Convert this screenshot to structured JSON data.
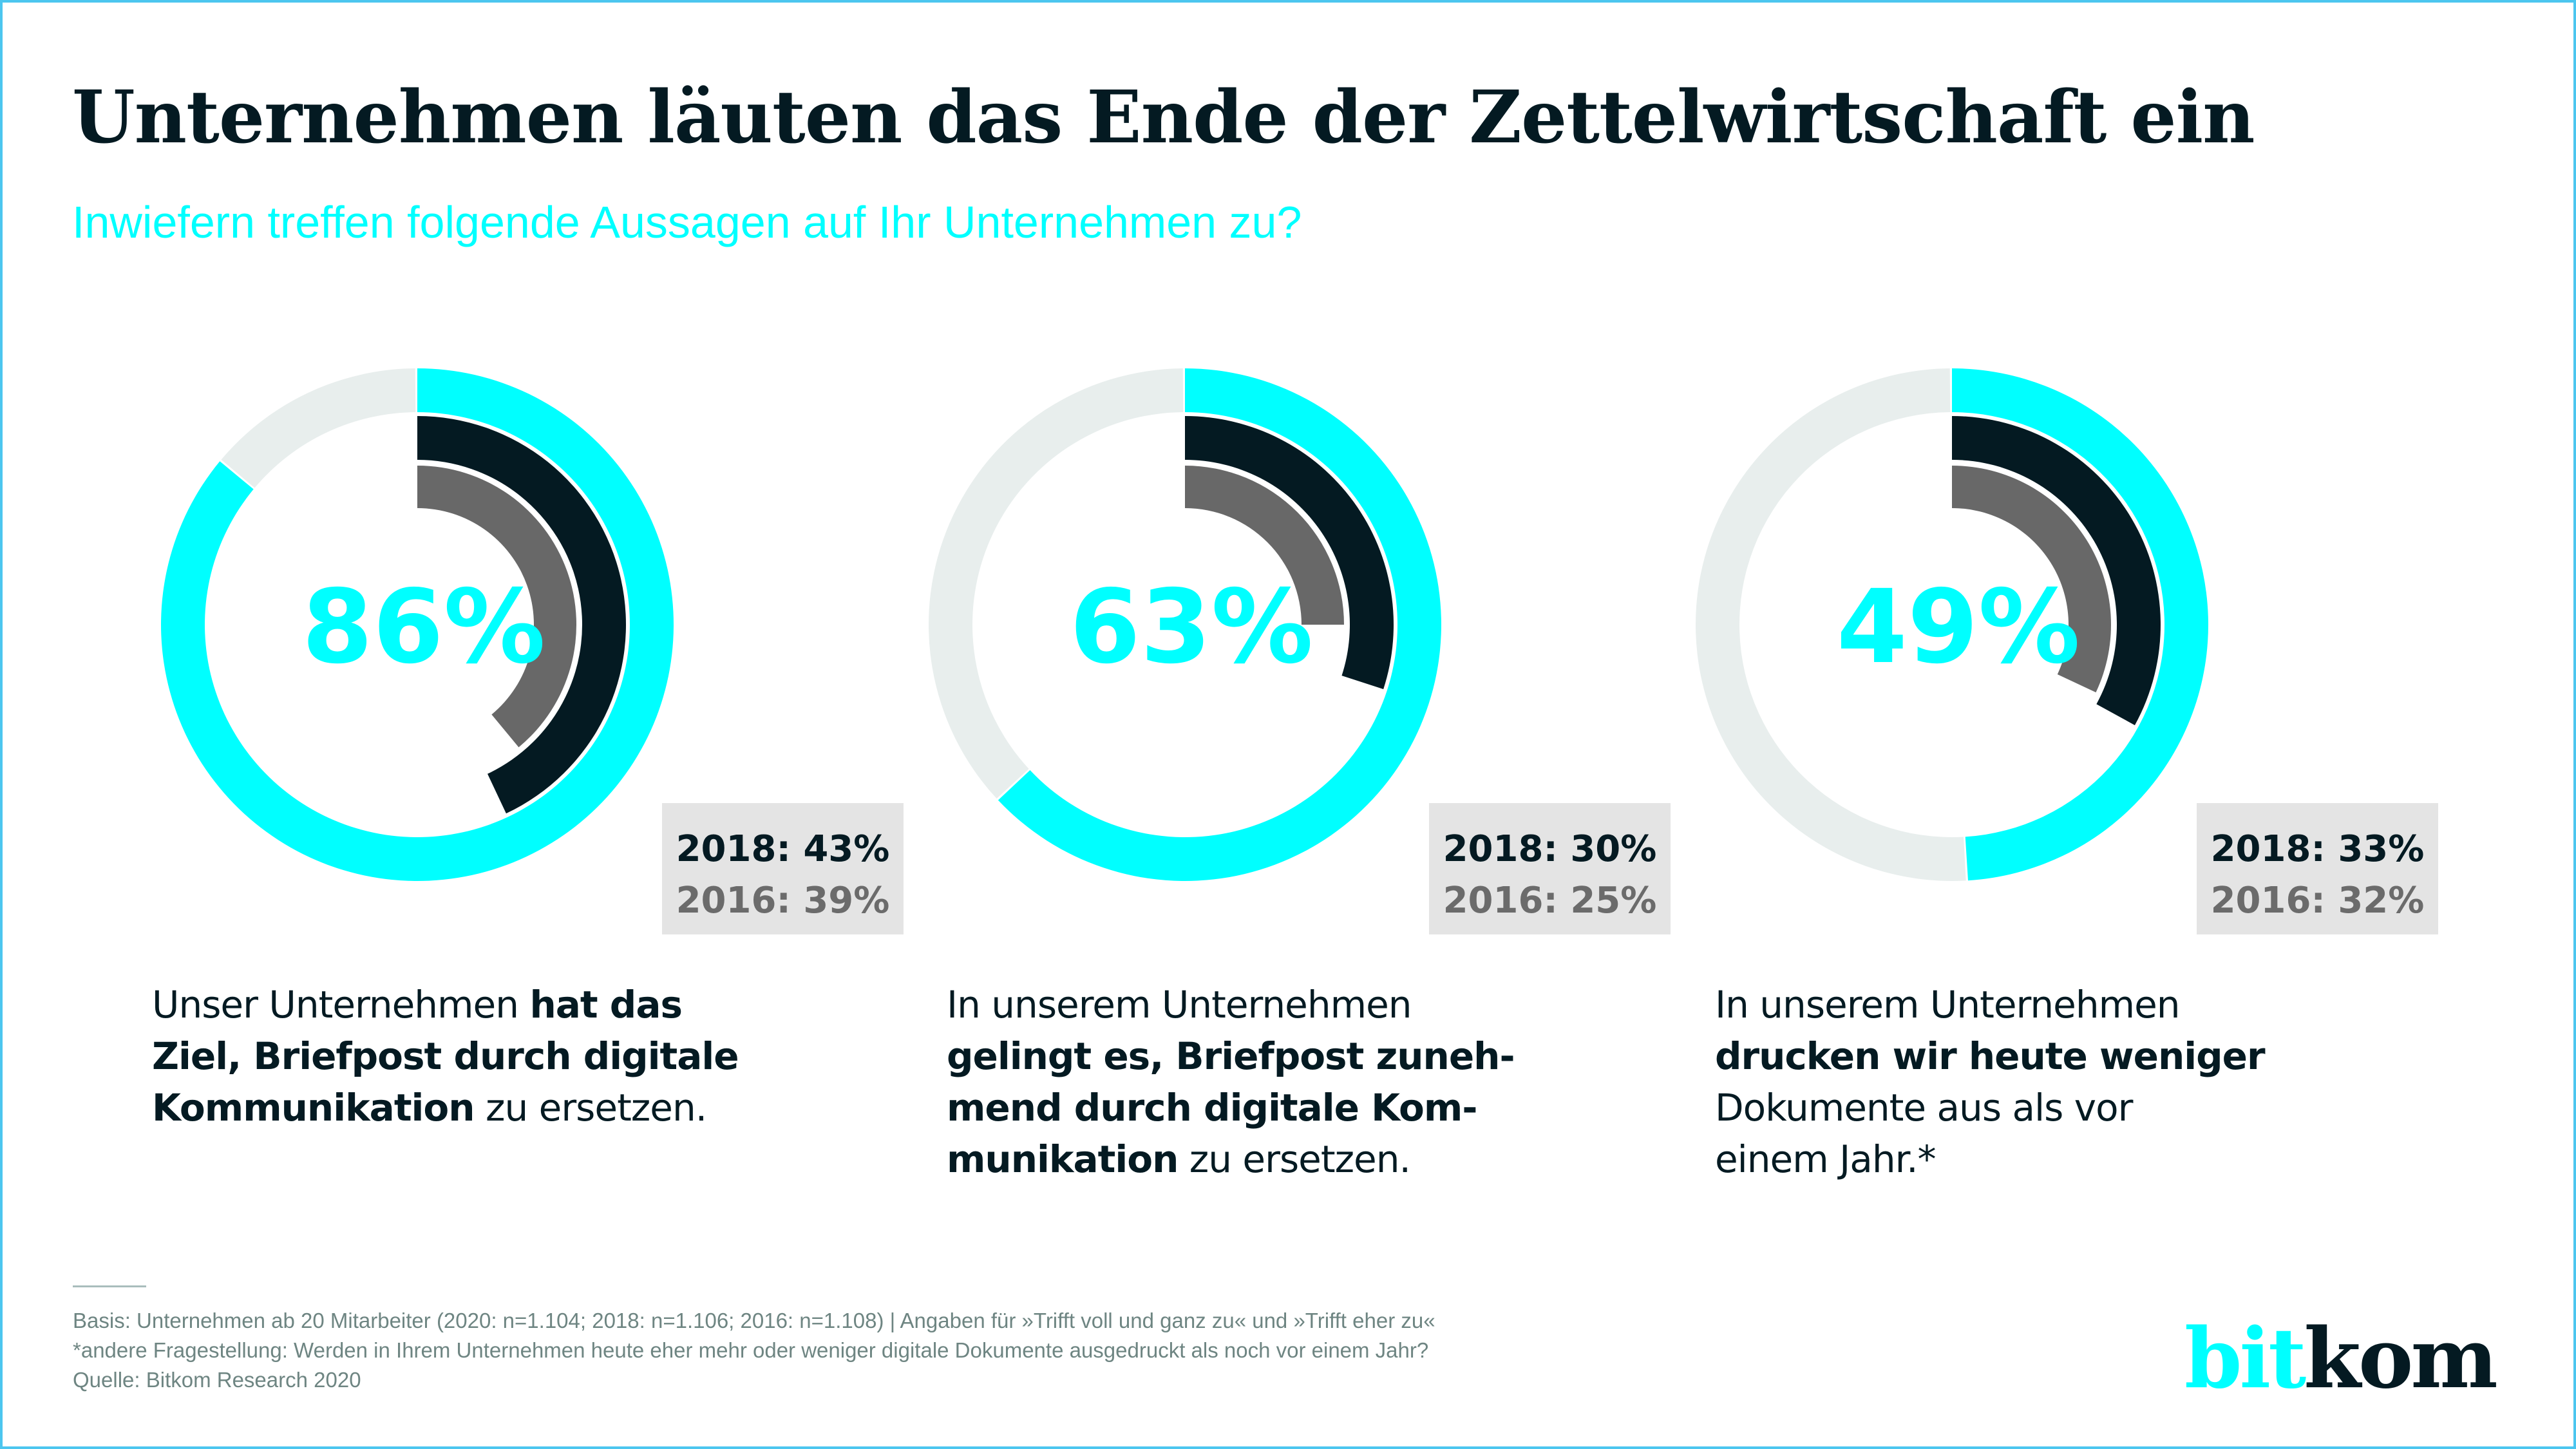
{
  "header": {
    "title": "Unternehmen läuten das Ende der Zettelwirtschaft ein",
    "subtitle": "Inwiefern treffen folgende Aussagen auf Ihr Unternehmen zu?"
  },
  "colors": {
    "current": "#00ffff",
    "y2018": "#041a22",
    "y2016": "#686868",
    "track": "#e8eeed",
    "box": "#e4e4e4"
  },
  "chart_data": {
    "type": "radial-bar",
    "title": "Unternehmen läuten das Ende der Zettelwirtschaft ein",
    "subtitle": "Inwiefern treffen folgende Aussagen auf Ihr Unternehmen zu?",
    "unit": "%",
    "series": [
      {
        "name": "2020",
        "values": [
          86,
          63,
          49
        ]
      },
      {
        "name": "2018",
        "values": [
          43,
          30,
          33
        ]
      },
      {
        "name": "2016",
        "values": [
          39,
          25,
          32
        ]
      }
    ],
    "categories": [
      "Unser Unternehmen hat das Ziel, Briefpost durch digitale Kommunikation zu ersetzen.",
      "In unserem Unternehmen gelingt es, Briefpost zunehmend durch digitale Kommunikation zu ersetzen.",
      "In unserem Unternehmen drucken wir heute weniger Dokumente aus als vor einem Jahr.*"
    ],
    "max": 100
  },
  "panels": [
    {
      "main_label": "86%",
      "main_value": 86,
      "y2018_value": 43,
      "y2016_value": 39,
      "y2018_label": "2018: 43%",
      "y2016_label": "2016: 39%",
      "statement_lines": [
        [
          {
            "t": "Unser Unternehmen ",
            "b": false
          },
          {
            "t": "hat das",
            "b": true
          }
        ],
        [
          {
            "t": "Ziel, Briefpost durch digitale",
            "b": true
          }
        ],
        [
          {
            "t": "Kommunikation",
            "b": true
          },
          {
            "t": " zu ersetzen.",
            "b": false
          }
        ]
      ]
    },
    {
      "main_label": "63%",
      "main_value": 63,
      "y2018_value": 30,
      "y2016_value": 25,
      "y2018_label": "2018: 30%",
      "y2016_label": "2016: 25%",
      "statement_lines": [
        [
          {
            "t": "In unserem Unternehmen",
            "b": false
          }
        ],
        [
          {
            "t": "gelingt es, Briefpost zuneh-",
            "b": true
          }
        ],
        [
          {
            "t": "mend durch digitale Kom-",
            "b": true
          }
        ],
        [
          {
            "t": "munikation",
            "b": true
          },
          {
            "t": " zu ersetzen.",
            "b": false
          }
        ]
      ]
    },
    {
      "main_label": "49%",
      "main_value": 49,
      "y2018_value": 33,
      "y2016_value": 32,
      "y2018_label": "2018: 33%",
      "y2016_label": "2016: 32%",
      "statement_lines": [
        [
          {
            "t": "In unserem Unternehmen",
            "b": false
          }
        ],
        [
          {
            "t": "drucken wir heute weniger",
            "b": true
          }
        ],
        [
          {
            "t": "Dokumente aus als vor",
            "b": false
          }
        ],
        [
          {
            "t": "einem Jahr.*",
            "b": false
          }
        ]
      ]
    }
  ],
  "footer": {
    "basis": "Basis: Unternehmen ab 20 Mitarbeiter (2020: n=1.104; 2018: n=1.106; 2016: n=1.108) | Angaben für »Trifft voll und ganz zu« und »Trifft eher zu«",
    "note": "*andere Fragestellung: Werden in Ihrem Unternehmen heute eher mehr oder weniger digitale Dokumente ausgedruckt als noch vor einem Jahr?",
    "source": "Quelle: Bitkom Research 2020"
  },
  "logo": {
    "part1": "bit",
    "part2": "kom"
  }
}
